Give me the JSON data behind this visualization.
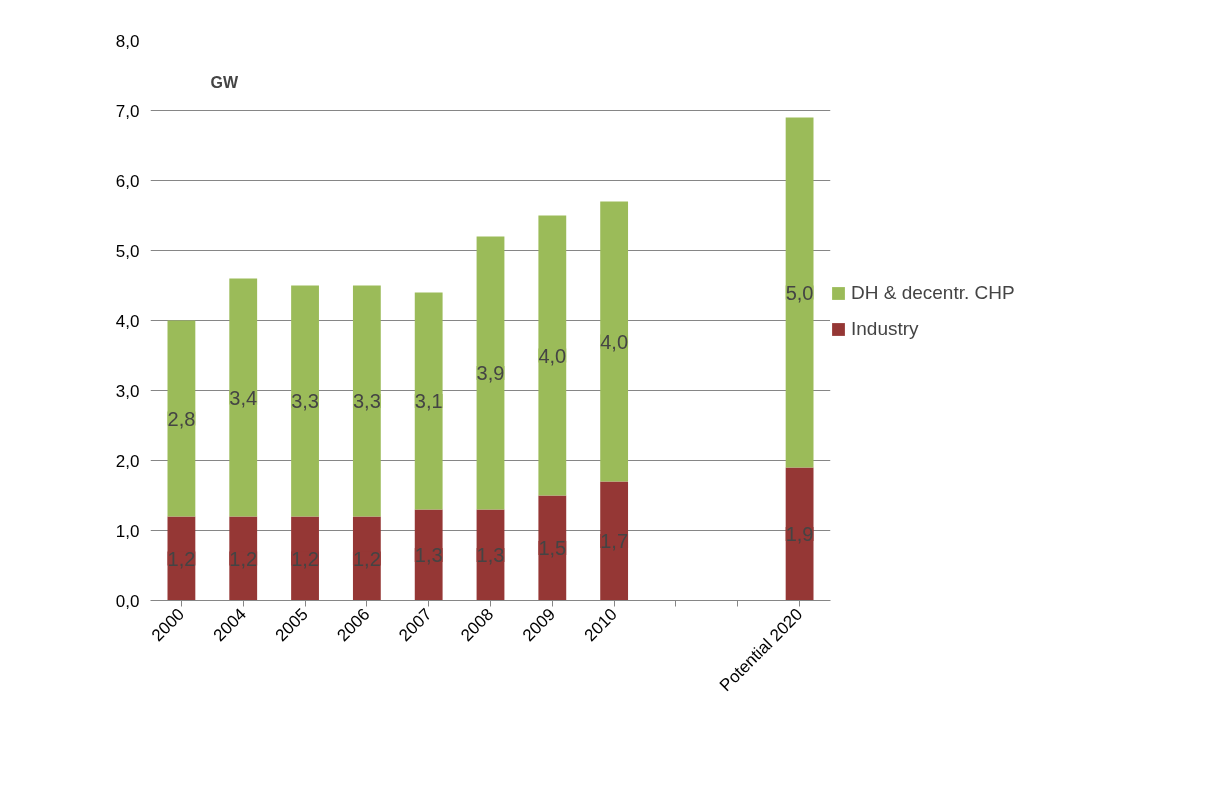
{
  "chart_data": {
    "type": "bar",
    "stacked": true,
    "ylabel": "GW",
    "categories": [
      "2000",
      "2004",
      "2005",
      "2006",
      "2007",
      "2008",
      "2009",
      "2010",
      null,
      null,
      "Potential 2020"
    ],
    "series": [
      {
        "name": "Industry",
        "color": "#953735",
        "values": [
          1.2,
          1.2,
          1.2,
          1.2,
          1.3,
          1.3,
          1.5,
          1.7,
          null,
          null,
          1.9
        ],
        "value_labels": [
          "1,2",
          "1,2",
          "1,2",
          "1,2",
          "1,3",
          "1,3",
          "1,5",
          "1,7",
          null,
          null,
          "1,9"
        ]
      },
      {
        "name": "DH & decentr. CHP",
        "color": "#9bbb59",
        "values": [
          2.8,
          3.4,
          3.3,
          3.3,
          3.1,
          3.9,
          4.0,
          4.0,
          null,
          null,
          5.0
        ],
        "value_labels": [
          "2,8",
          "3,4",
          "3,3",
          "3,3",
          "3,1",
          "3,9",
          "4,0",
          "4,0",
          null,
          null,
          "5,0"
        ]
      }
    ],
    "ylim": [
      0,
      8
    ],
    "yticks": [
      {
        "value": 0,
        "label": "0,0"
      },
      {
        "value": 1,
        "label": "1,0"
      },
      {
        "value": 2,
        "label": "2,0"
      },
      {
        "value": 3,
        "label": "3,0"
      },
      {
        "value": 4,
        "label": "4,0"
      },
      {
        "value": 5,
        "label": "5,0"
      },
      {
        "value": 6,
        "label": "6,0"
      },
      {
        "value": 7,
        "label": "7,0"
      },
      {
        "value": 8,
        "label": "8,0"
      }
    ],
    "grid": "y",
    "legend": "right"
  }
}
